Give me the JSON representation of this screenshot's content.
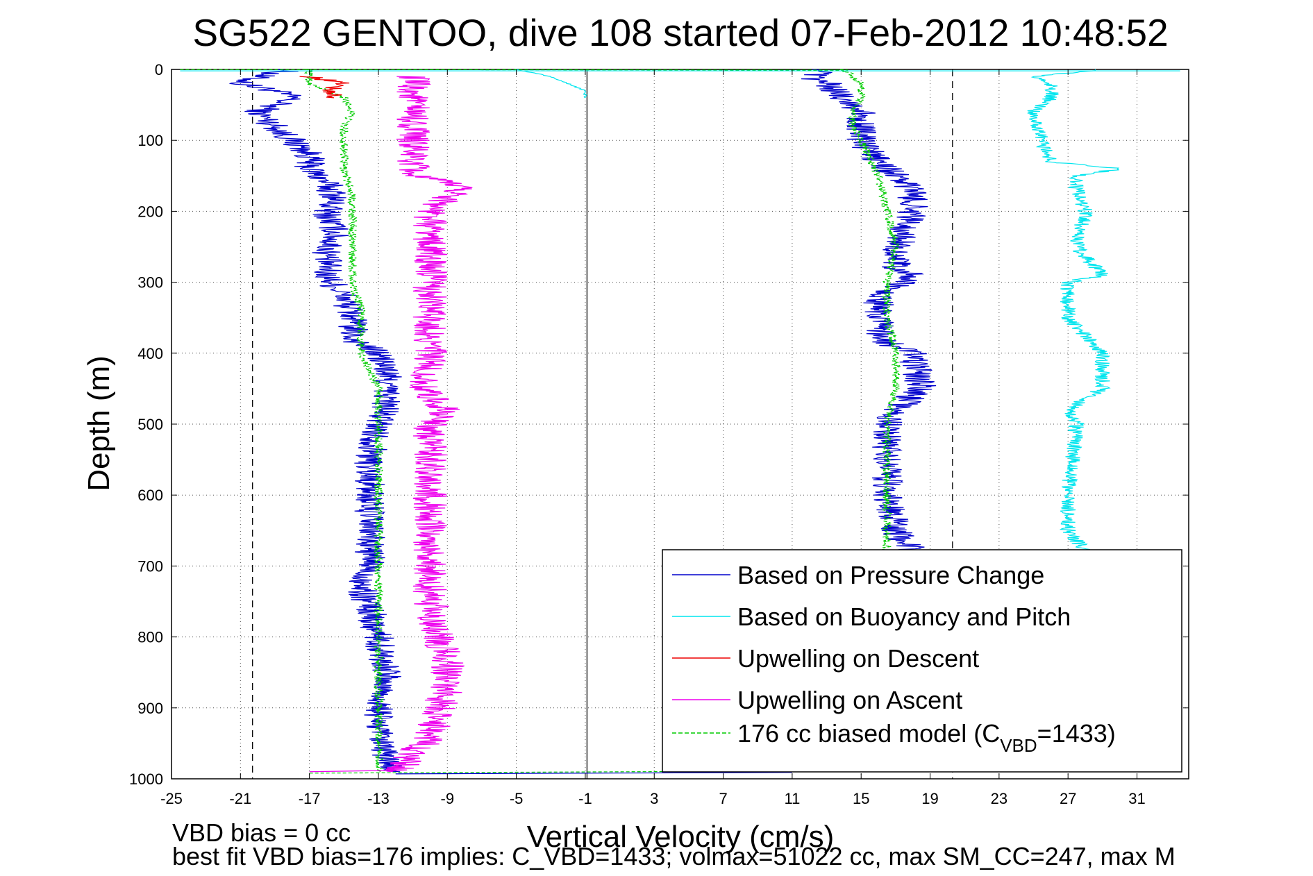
{
  "chart_data": {
    "type": "line",
    "title": "SG522 GENTOO, dive 108 started 07-Feb-2012 10:48:52",
    "xlabel": "Vertical Velocity (cm/s)",
    "ylabel": "Depth (m)",
    "xlim": [
      -25,
      34
    ],
    "ylim": [
      0,
      1000
    ],
    "y_reversed": true,
    "xticks": [
      "-25",
      "-21",
      "-17",
      "-13",
      "-9",
      "-5",
      "-1",
      "3",
      "7",
      "11",
      "15",
      "19",
      "23",
      "27",
      "31"
    ],
    "yticks": [
      "0",
      "100",
      "200",
      "300",
      "400",
      "500",
      "600",
      "700",
      "800",
      "900",
      "1000"
    ],
    "grid": true,
    "legend_position": "bottom-right",
    "legend": [
      {
        "label": "Based on Pressure Change",
        "color": "#0000cc",
        "dashed": false
      },
      {
        "label": "Based on Buoyancy and Pitch",
        "color": "#00e5ee",
        "dashed": false
      },
      {
        "label": "Upwelling on Descent",
        "color": "#ee0000",
        "dashed": false
      },
      {
        "label": "Upwelling on Ascent",
        "color": "#ee00ee",
        "dashed": false
      },
      {
        "label_prefix": "176 cc biased model (C",
        "label_sub": "VBD",
        "label_suffix": "=1433)",
        "color": "#00cc00",
        "dashed": true
      }
    ],
    "reference_lines": [
      {
        "x": -20.3,
        "style": "dashed"
      },
      {
        "x": -0.9,
        "style": "solid"
      },
      {
        "x": 20.3,
        "style": "dashed"
      }
    ],
    "series": [
      {
        "key": "pressure_descent",
        "color": "#0000cc",
        "depth": [
          0,
          10,
          20,
          30,
          40,
          60,
          80,
          100,
          120,
          140,
          160,
          180,
          200,
          230,
          260,
          290,
          320,
          350,
          380,
          400,
          430,
          470,
          500,
          550,
          600,
          650,
          700,
          730,
          760,
          800,
          850,
          900,
          950,
          990
        ],
        "velocity": [
          -18,
          -20,
          -21,
          -19,
          -18,
          -20,
          -19,
          -18,
          -17,
          -17,
          -16,
          -15.5,
          -16,
          -15.5,
          -16,
          -16,
          -15,
          -14.5,
          -14.5,
          -13,
          -12.5,
          -12.5,
          -13,
          -13.5,
          -13.5,
          -13.5,
          -13.5,
          -14,
          -13.5,
          -13,
          -12.5,
          -13,
          -13,
          -12
        ]
      },
      {
        "key": "model_descent",
        "color": "#00cc00",
        "depth": [
          0,
          20,
          40,
          60,
          80,
          100,
          140,
          180,
          220,
          300,
          340,
          400,
          450,
          500,
          600,
          700,
          800,
          900,
          990
        ],
        "velocity": [
          -17,
          -17,
          -15,
          -14.5,
          -15,
          -15,
          -15,
          -14.5,
          -14.5,
          -14.5,
          -14,
          -14,
          -13,
          -13,
          -13,
          -13,
          -13,
          -13,
          -13
        ]
      },
      {
        "key": "upwelling_descent",
        "color": "#ee0000",
        "depth": [
          10,
          15,
          20,
          25,
          30,
          35,
          40
        ],
        "velocity": [
          -17,
          -16,
          -15,
          -15.5,
          -16,
          -15.5,
          -16
        ]
      },
      {
        "key": "upwelling_ascent",
        "color": "#ee00ee",
        "depth": [
          10,
          30,
          60,
          100,
          150,
          165,
          200,
          240,
          280,
          300,
          350,
          400,
          450,
          480,
          500,
          600,
          650,
          700,
          750,
          800,
          830,
          870,
          900,
          940,
          990
        ],
        "velocity": [
          -11,
          -11,
          -11,
          -11,
          -11,
          -8,
          -10,
          -10,
          -10,
          -10,
          -10,
          -10,
          -10.5,
          -9,
          -10,
          -10,
          -10,
          -10,
          -10,
          -9.5,
          -9,
          -9,
          -9.5,
          -10,
          -12
        ]
      },
      {
        "key": "pressure_ascent",
        "color": "#0000cc",
        "depth": [
          0,
          10,
          20,
          40,
          60,
          80,
          100,
          130,
          150,
          170,
          200,
          230,
          260,
          280,
          290,
          320,
          350,
          380,
          400,
          450,
          480,
          500,
          550,
          600,
          650,
          680
        ],
        "velocity": [
          13,
          12,
          13,
          14,
          15,
          15,
          15,
          16,
          17,
          18,
          18,
          17.5,
          17,
          17,
          18,
          16,
          16,
          16,
          18,
          18.5,
          17,
          16.5,
          16.5,
          16.5,
          17,
          18
        ]
      },
      {
        "key": "model_ascent",
        "color": "#00cc00",
        "depth": [
          0,
          20,
          40,
          60,
          80,
          100,
          150,
          200,
          250,
          300,
          350,
          400,
          450,
          500,
          600,
          650,
          680
        ],
        "velocity": [
          14,
          15,
          15,
          14.5,
          14.5,
          15,
          16,
          16.5,
          17,
          16.5,
          16.5,
          17,
          17,
          16.5,
          16.5,
          16.5,
          16.5
        ]
      },
      {
        "key": "buoyancy_ascent",
        "color": "#00e5ee",
        "depth": [
          0,
          10,
          20,
          40,
          60,
          100,
          130,
          140,
          150,
          170,
          200,
          250,
          290,
          300,
          350,
          400,
          450,
          480,
          500,
          600,
          650,
          680
        ],
        "velocity": [
          29,
          25,
          26,
          26,
          25,
          25.5,
          26,
          30,
          27.5,
          27.5,
          28,
          27.5,
          29,
          27,
          27,
          29,
          29,
          27,
          27.5,
          27,
          27,
          28
        ]
      },
      {
        "key": "buoyancy_descent",
        "color": "#00e5ee",
        "depth": [
          0,
          5,
          10,
          20,
          30,
          40
        ],
        "velocity": [
          -5,
          -4,
          -3,
          -2,
          -1,
          -1
        ]
      }
    ],
    "annotations": [
      "VBD bias = 0 cc",
      "best fit VBD bias=176 implies: C_VBD=1433; volmax=51022 cc, max SM_CC=247, max M"
    ]
  }
}
